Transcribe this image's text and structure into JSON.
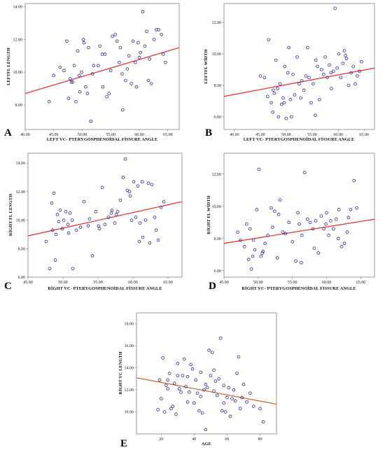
{
  "chart_data": [
    {
      "type": "scatter",
      "panel_label": "A",
      "xlabel": "LEFT VC- PTERYGOSPHENOİDAL FİSSURE ANGLE",
      "ylabel": "LEFTFL LENGTH",
      "xlim": [
        40,
        67
      ],
      "ylim": [
        6.5,
        14.2
      ],
      "xticks": [
        40,
        45,
        50,
        55,
        60,
        65
      ],
      "xtick_labels": [
        "40.00",
        "45.00",
        "50.00",
        "55.00",
        "60.00",
        "65.00"
      ],
      "yticks": [
        8,
        10,
        12,
        14
      ],
      "ytick_labels": [
        "8.00",
        "10.00",
        "12.00",
        "14.00"
      ],
      "fit_line": {
        "x": [
          40,
          67
        ],
        "y": [
          8.7,
          11.5
        ]
      },
      "fit_color": "#e02a2a",
      "marker_color": "#2b2b88",
      "points": {
        "x": [
          44.2,
          45.0,
          46.1,
          46.8,
          47.3,
          47.6,
          47.9,
          48.3,
          48.6,
          48.9,
          49.2,
          49.5,
          49.6,
          49.9,
          50.2,
          50.3,
          50.6,
          50.9,
          51.1,
          51.5,
          52.0,
          52.8,
          53.1,
          53.5,
          53.6,
          54.0,
          54.3,
          54.7,
          55.0,
          55.3,
          55.8,
          56.1,
          56.5,
          56.7,
          57.1,
          57.6,
          57.9,
          58.2,
          58.6,
          58.9,
          59.3,
          59.5,
          59.8,
          60.0,
          60.2,
          60.6,
          61.0,
          61.3,
          61.8,
          62.1,
          62.6,
          63.0,
          63.4,
          63.9,
          64.2,
          64.6,
          51.8,
          48.1,
          57.0,
          61.6
        ],
        "y": [
          8.2,
          9.8,
          10.3,
          10.1,
          11.9,
          8.4,
          9.6,
          9.4,
          10.4,
          8.2,
          11.3,
          9.8,
          8.8,
          10.0,
          12.0,
          11.8,
          9.1,
          8.7,
          11.5,
          7.0,
          10.4,
          10.4,
          11.6,
          11.1,
          9.1,
          11.1,
          8.5,
          8.7,
          10.1,
          12.2,
          12.3,
          11.9,
          10.6,
          11.5,
          7.7,
          9.5,
          10.2,
          11.0,
          9.3,
          11.9,
          10.6,
          9.1,
          11.8,
          10.9,
          11.2,
          13.7,
          11.6,
          12.5,
          10.8,
          9.3,
          12.0,
          12.6,
          12.6,
          12.3,
          11.1,
          10.6,
          9.9,
          9.4,
          9.9,
          9.5
        ]
      }
    },
    {
      "type": "scatter",
      "panel_label": "B",
      "xlabel": "LEFT VC- PTERYGOSPHENOİDAL FİSSURE ANGLE",
      "ylabel": "LEFTFL WİDTH",
      "xlim": [
        38,
        67
      ],
      "ylim": [
        5.2,
        13.2
      ],
      "xticks": [
        40,
        45,
        50,
        55,
        60,
        65
      ],
      "xtick_labels": [
        "40.00",
        "45.00",
        "50.00",
        "55.00",
        "60.00",
        "65.00"
      ],
      "yticks": [
        6,
        8,
        10,
        12
      ],
      "ytick_labels": [
        "6.00",
        "8.00",
        "10.00",
        "12.00"
      ],
      "fit_line": {
        "x": [
          38,
          67
        ],
        "y": [
          7.3,
          9.1
        ]
      },
      "fit_color": "#e02a2a",
      "marker_color": "#2b2b88",
      "points": {
        "x": [
          45.0,
          45.8,
          46.6,
          47.1,
          47.4,
          47.7,
          48.0,
          48.3,
          48.5,
          48.8,
          49.1,
          49.4,
          49.7,
          50.0,
          50.3,
          50.5,
          50.8,
          51.0,
          51.3,
          51.6,
          52.1,
          52.5,
          53.0,
          53.4,
          53.8,
          54.1,
          54.4,
          54.8,
          55.2,
          55.6,
          56.0,
          56.4,
          56.8,
          57.2,
          57.5,
          57.9,
          58.3,
          58.7,
          59.1,
          59.4,
          59.8,
          60.1,
          60.5,
          60.9,
          61.2,
          61.6,
          62.0,
          62.5,
          62.9,
          63.3,
          63.7,
          64.1,
          64.5,
          47.5,
          49.6,
          52.8,
          55.7,
          58.6,
          61.4,
          46.4
        ],
        "y": [
          8.6,
          8.5,
          10.9,
          6.9,
          6.3,
          7.5,
          9.6,
          7.8,
          6.0,
          8.1,
          6.8,
          7.2,
          9.2,
          5.9,
          8.8,
          10.4,
          7.1,
          6.0,
          8.7,
          7.4,
          9.8,
          8.1,
          8.3,
          7.7,
          8.6,
          10.4,
          8.5,
          6.9,
          8.1,
          6.1,
          9.2,
          7.1,
          9.0,
          8.7,
          9.8,
          8.5,
          9.3,
          7.8,
          8.9,
          12.9,
          9.1,
          10.0,
          8.5,
          9.4,
          10.2,
          9.7,
          8.0,
          8.8,
          9.2,
          8.1,
          8.6,
          8.9,
          9.5,
          7.7,
          6.9,
          7.2,
          9.6,
          8.8,
          9.9,
          7.3
        ]
      }
    },
    {
      "type": "scatter",
      "panel_label": "C",
      "xlabel": "RİGHT VC- PTERYGOSPHENOİDAL FİSSURE ANGLE",
      "ylabel": "RİGHT FL LENGTH",
      "xlim": [
        45,
        67
      ],
      "ylim": [
        6.0,
        14.7
      ],
      "xticks": [
        45,
        50,
        55,
        60,
        65
      ],
      "xtick_labels": [
        "45.00",
        "50.00",
        "55.00",
        "60.00",
        "65.00"
      ],
      "yticks": [
        6,
        8,
        10,
        12,
        14
      ],
      "ytick_labels": [
        "6.00",
        "8.00",
        "10.00",
        "12.00",
        "14.00"
      ],
      "fit_line": {
        "x": [
          45,
          67
        ],
        "y": [
          8.9,
          11.3
        ]
      },
      "fit_color": "#e02a2a",
      "marker_color": "#2b2b88",
      "points": {
        "x": [
          47.6,
          48.1,
          48.5,
          48.7,
          48.9,
          49.2,
          49.4,
          49.6,
          49.9,
          50.1,
          50.4,
          50.7,
          51.0,
          51.4,
          51.9,
          52.5,
          53.0,
          53.6,
          54.2,
          54.7,
          55.1,
          55.6,
          56.0,
          56.5,
          57.0,
          57.4,
          57.8,
          58.2,
          58.6,
          58.9,
          59.2,
          59.5,
          59.8,
          60.1,
          60.4,
          60.7,
          61.0,
          61.4,
          61.8,
          62.2,
          62.7,
          63.1,
          63.6,
          64.0,
          64.4,
          48.4,
          51.3,
          53.8,
          56.9,
          59.6,
          60.9,
          62.4,
          50.8,
          55.2,
          57.6,
          61.3,
          63.3,
          49.0
        ],
        "y": [
          8.5,
          6.6,
          9.3,
          11.9,
          7.2,
          10.4,
          9.9,
          10.7,
          9.4,
          10.0,
          10.6,
          9.7,
          10.5,
          6.6,
          9.3,
          9.5,
          11.3,
          9.6,
          7.5,
          10.6,
          9.6,
          12.3,
          9.7,
          10.2,
          10.7,
          9.8,
          10.6,
          11.4,
          13.0,
          14.3,
          12.1,
          12.0,
          10.0,
          12.7,
          10.2,
          12.4,
          9.8,
          8.8,
          10.0,
          12.6,
          12.5,
          10.2,
          8.6,
          10.9,
          11.3,
          11.2,
          10.0,
          10.1,
          10.5,
          11.7,
          8.5,
          8.4,
          9.1,
          9.4,
          10.4,
          12.7,
          9.3,
          9.0
        ]
      }
    },
    {
      "type": "scatter",
      "panel_label": "D",
      "xlabel": "RİGHT VC- PTERYGOSPHENOİDAL FİSSURE ANGLE",
      "ylabel": "RİGHT FL WİDTH",
      "xlim": [
        45,
        67
      ],
      "ylim": [
        5.6,
        13.3
      ],
      "xticks": [
        45,
        50,
        55,
        60,
        65
      ],
      "xtick_labels": [
        "45.00",
        "50.00",
        "55.00",
        "60.00",
        "65.00"
      ],
      "yticks": [
        6,
        8,
        10,
        12
      ],
      "ytick_labels": [
        "6.00",
        "8.00",
        "10.00",
        "12.00"
      ],
      "fit_line": {
        "x": [
          45,
          67
        ],
        "y": [
          7.7,
          9.2
        ]
      },
      "fit_color": "#e02a2a",
      "marker_color": "#2b2b88",
      "points": {
        "x": [
          47.0,
          47.4,
          48.0,
          48.3,
          48.6,
          48.8,
          49.0,
          49.3,
          49.5,
          49.8,
          50.1,
          50.4,
          50.7,
          51.0,
          51.4,
          51.9,
          52.4,
          52.8,
          53.2,
          53.6,
          54.0,
          54.5,
          55.0,
          55.5,
          56.0,
          56.4,
          56.8,
          57.2,
          57.6,
          58.0,
          58.4,
          58.8,
          59.2,
          59.6,
          60.0,
          60.3,
          60.6,
          61.0,
          61.4,
          61.8,
          62.2,
          62.6,
          63.0,
          63.5,
          64.0,
          64.4,
          49.2,
          50.6,
          53.0,
          56.3,
          58.2,
          59.9,
          61.7,
          63.2,
          52.1,
          55.8
        ],
        "y": [
          8.4,
          7.9,
          7.5,
          8.9,
          6.7,
          8.6,
          6.1,
          7.9,
          7.3,
          9.8,
          12.3,
          6.9,
          7.2,
          7.7,
          8.2,
          9.9,
          9.7,
          6.8,
          10.4,
          8.4,
          8.3,
          9.0,
          7.8,
          6.6,
          8.9,
          8.2,
          12.1,
          9.2,
          9.0,
          8.6,
          9.1,
          7.1,
          9.4,
          8.6,
          9.6,
          8.2,
          9.1,
          8.6,
          9.2,
          9.8,
          7.5,
          7.7,
          8.4,
          9.8,
          11.6,
          9.9,
          6.9,
          7.1,
          9.5,
          6.5,
          7.4,
          8.9,
          8.0,
          9.3,
          8.7,
          9.6
        ]
      }
    },
    {
      "type": "scatter",
      "panel_label": "E",
      "xlabel": "AGE",
      "ylabel": "RİGHT VC LENGTH",
      "xlim": [
        5,
        90
      ],
      "ylim": [
        8.0,
        19.0
      ],
      "xticks": [
        20,
        40,
        60,
        80
      ],
      "xtick_labels": [
        "20",
        "40",
        "60",
        "80"
      ],
      "yticks": [
        10,
        12,
        14,
        16,
        18
      ],
      "ytick_labels": [
        "10.00",
        "12.00",
        "14.00",
        "16.00",
        "18.00"
      ],
      "fit_line": {
        "x": [
          5,
          90
        ],
        "y": [
          13.1,
          10.7
        ]
      },
      "fit_color": "#c0602a",
      "marker_color": "#2b2b88",
      "points": {
        "x": [
          18,
          19,
          20,
          21,
          22,
          23,
          24,
          25,
          26,
          27,
          28,
          29,
          30,
          31,
          32,
          33,
          34,
          35,
          36,
          37,
          38,
          39,
          40,
          41,
          42,
          43,
          44,
          45,
          46,
          47,
          48,
          49,
          50,
          51,
          52,
          53,
          54,
          55,
          56,
          57,
          58,
          59,
          60,
          61,
          62,
          63,
          64,
          65,
          66,
          67,
          68,
          70,
          72,
          74,
          76,
          80,
          82,
          24,
          36,
          47,
          58,
          69,
          30,
          44,
          52
        ],
        "y": [
          10.2,
          12.9,
          11.2,
          14.9,
          10.0,
          12.4,
          12.1,
          13.5,
          10.3,
          10.5,
          12.6,
          9.8,
          14.4,
          12.1,
          11.8,
          13.3,
          14.8,
          12.3,
          10.9,
          11.8,
          14.3,
          13.9,
          10.8,
          12.9,
          11.7,
          10.1,
          11.4,
          9.9,
          12.0,
          8.4,
          12.2,
          15.6,
          13.3,
          15.4,
          11.9,
          12.8,
          11.5,
          13.0,
          16.7,
          10.1,
          12.4,
          10.0,
          11.3,
          12.2,
          9.6,
          11.2,
          12.0,
          11.0,
          13.5,
          15.0,
          10.3,
          12.5,
          10.9,
          11.7,
          10.5,
          10.3,
          9.1,
          12.9,
          13.2,
          12.5,
          10.8,
          11.3,
          13.3,
          13.6,
          13.8
        ]
      }
    }
  ]
}
